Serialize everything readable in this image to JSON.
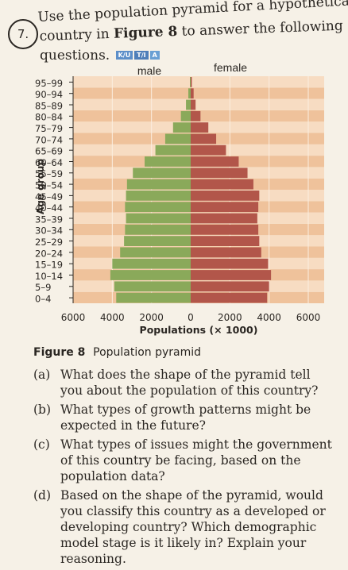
{
  "question": {
    "number": "7.",
    "line1": "Use the population pyramid for a hypothetical",
    "line2_pre": "country in ",
    "line2_bold": "Figure 8",
    "line2_post": " to answer the following",
    "line3": "questions.",
    "badges": [
      "K/U",
      "T/I",
      "A"
    ]
  },
  "chart_data": {
    "type": "bar",
    "orientation": "horizontal-pyramid",
    "categories": [
      "0–4",
      "5–9",
      "10–14",
      "15–19",
      "20–24",
      "25–29",
      "30–34",
      "35–39",
      "40–44",
      "45–49",
      "50–54",
      "55–59",
      "60–64",
      "65–69",
      "70–74",
      "75–79",
      "80–84",
      "85–89",
      "90–94",
      "95–99"
    ],
    "series": [
      {
        "name": "male",
        "values": [
          3800,
          3900,
          4100,
          4000,
          3600,
          3400,
          3350,
          3300,
          3350,
          3300,
          3250,
          2950,
          2350,
          1800,
          1300,
          900,
          500,
          240,
          120,
          40
        ]
      },
      {
        "name": "female",
        "values": [
          3900,
          4000,
          4100,
          3950,
          3600,
          3500,
          3450,
          3400,
          3450,
          3500,
          3200,
          2900,
          2450,
          1800,
          1300,
          900,
          500,
          250,
          150,
          60
        ]
      }
    ],
    "xlabel": "Populations (× 1000)",
    "ylabel": "Age group",
    "xticks": [
      "6000",
      "4000",
      "2000",
      "0",
      "2000",
      "4000",
      "6000"
    ],
    "xlim": [
      -6000,
      6000
    ],
    "colors": {
      "male": "#8aa95a",
      "female": "#b2564a",
      "bg_light": "#f7dcc2",
      "bg_dark": "#efc29b"
    }
  },
  "figure_caption": {
    "label": "Figure 8",
    "text": "Population pyramid"
  },
  "parts": [
    {
      "label": "(a)",
      "text": "What does the shape of the pyramid tell you about the population of this country?"
    },
    {
      "label": "(b)",
      "text": "What types of growth patterns might be expected in the future?"
    },
    {
      "label": "(c)",
      "text": "What types of issues might the government of this country be facing, based on the population data?"
    },
    {
      "label": "(d)",
      "text": "Based on the shape of the pyramid, would you classify this country as a developed or developing country? Which demographic model stage is it likely in? Explain your reasoning."
    }
  ]
}
